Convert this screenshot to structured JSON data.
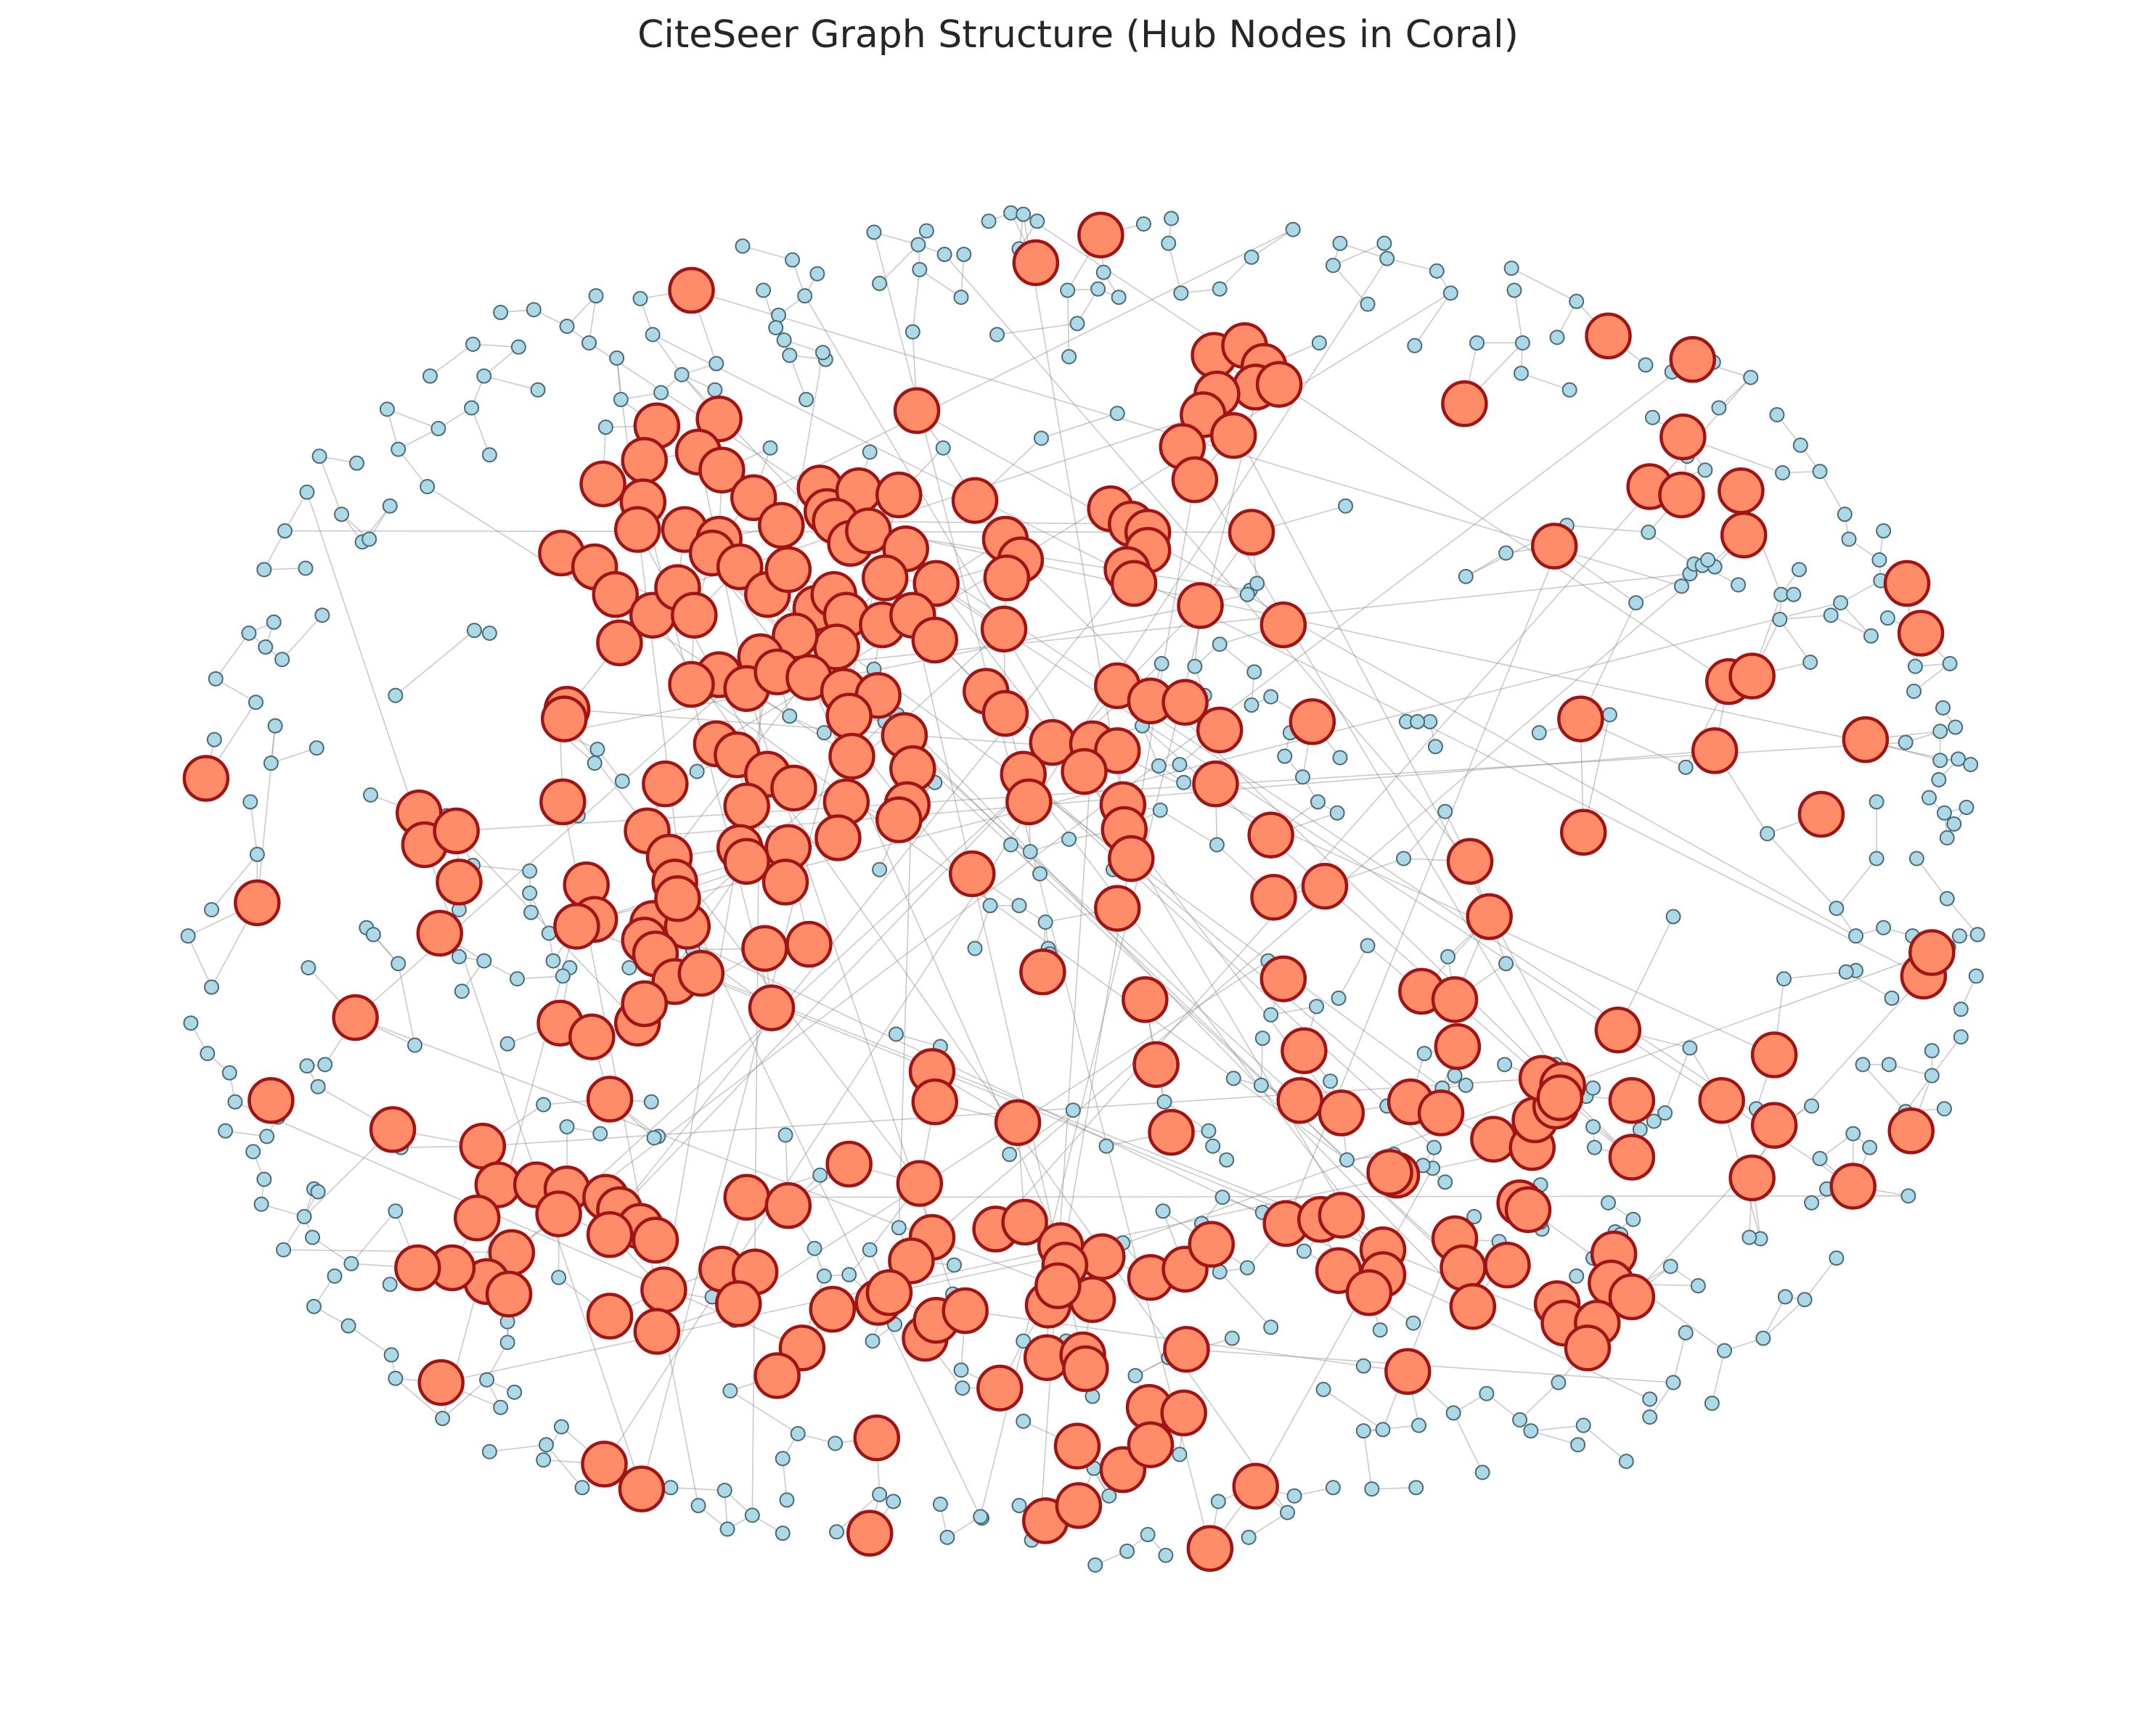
{
  "title": "CiteSeer Graph Structure (Hub Nodes in Coral)",
  "colors": {
    "hub_fill": "#ff8c69",
    "hub_stroke": "#a01414",
    "regular_fill": "#add8e6",
    "regular_stroke": "#4a6a78",
    "edge": "#8a8a8a",
    "background": "#ffffff"
  },
  "chart_data": {
    "type": "network-graph",
    "legend": "none",
    "node_categories": [
      "hub",
      "regular"
    ]
  }
}
